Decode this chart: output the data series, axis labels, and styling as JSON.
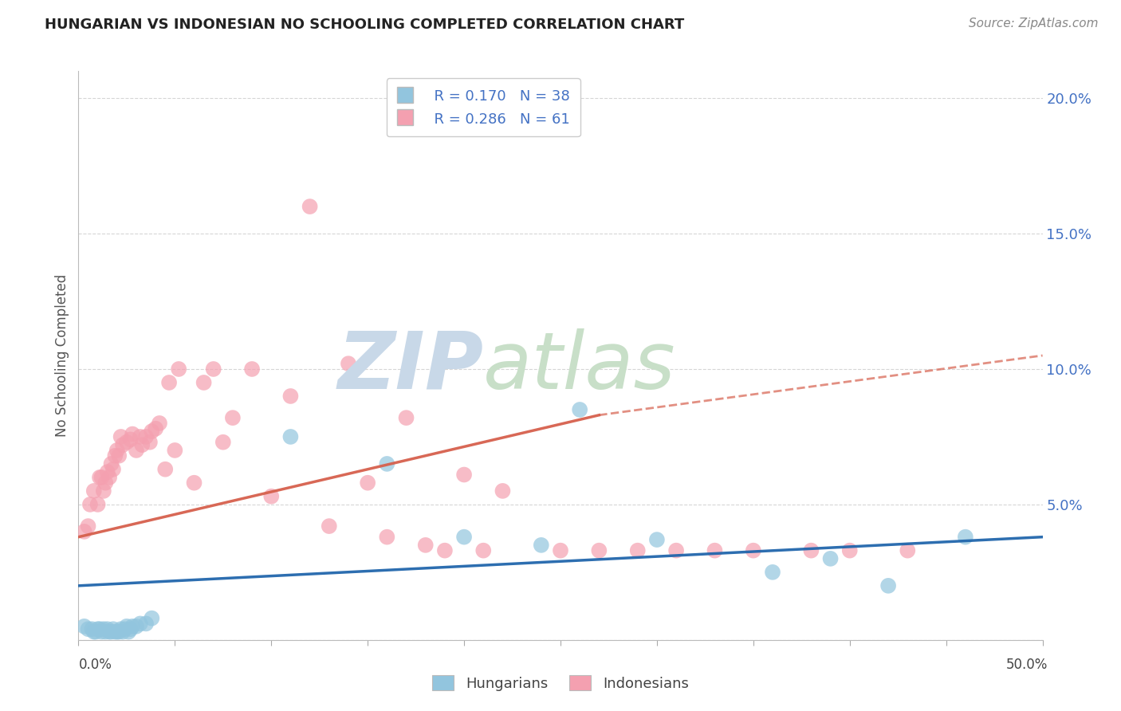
{
  "title": "HUNGARIAN VS INDONESIAN NO SCHOOLING COMPLETED CORRELATION CHART",
  "source": "Source: ZipAtlas.com",
  "ylabel": "No Schooling Completed",
  "xlim": [
    0.0,
    0.5
  ],
  "ylim": [
    0.0,
    0.21
  ],
  "yticks": [
    0.0,
    0.05,
    0.1,
    0.15,
    0.2
  ],
  "ytick_labels": [
    "",
    "5.0%",
    "10.0%",
    "15.0%",
    "20.0%"
  ],
  "legend_r_hungarian": "R = 0.170",
  "legend_n_hungarian": "N = 38",
  "legend_r_indonesian": "R = 0.286",
  "legend_n_indonesian": "N = 61",
  "hungarian_color": "#92c5de",
  "indonesian_color": "#f4a0b0",
  "hun_line_color": "#2166ac",
  "ind_line_color": "#d6604d",
  "watermark_zip_color": "#c8d8e8",
  "watermark_atlas_color": "#c8dfc8",
  "hun_x": [
    0.003,
    0.005,
    0.007,
    0.008,
    0.009,
    0.01,
    0.011,
    0.012,
    0.013,
    0.014,
    0.015,
    0.016,
    0.017,
    0.018,
    0.019,
    0.02,
    0.021,
    0.022,
    0.023,
    0.024,
    0.025,
    0.026,
    0.027,
    0.028,
    0.03,
    0.032,
    0.035,
    0.038,
    0.11,
    0.16,
    0.2,
    0.24,
    0.26,
    0.3,
    0.36,
    0.39,
    0.42,
    0.46
  ],
  "hun_y": [
    0.005,
    0.004,
    0.004,
    0.003,
    0.003,
    0.004,
    0.004,
    0.003,
    0.004,
    0.003,
    0.004,
    0.003,
    0.003,
    0.004,
    0.003,
    0.003,
    0.003,
    0.004,
    0.003,
    0.004,
    0.005,
    0.003,
    0.004,
    0.005,
    0.005,
    0.006,
    0.006,
    0.008,
    0.075,
    0.065,
    0.038,
    0.035,
    0.085,
    0.037,
    0.025,
    0.03,
    0.02,
    0.038
  ],
  "ind_x": [
    0.003,
    0.005,
    0.006,
    0.008,
    0.01,
    0.011,
    0.012,
    0.013,
    0.014,
    0.015,
    0.016,
    0.017,
    0.018,
    0.019,
    0.02,
    0.021,
    0.022,
    0.023,
    0.025,
    0.027,
    0.028,
    0.03,
    0.032,
    0.033,
    0.035,
    0.037,
    0.038,
    0.04,
    0.042,
    0.045,
    0.047,
    0.05,
    0.052,
    0.06,
    0.065,
    0.07,
    0.075,
    0.08,
    0.09,
    0.1,
    0.11,
    0.12,
    0.13,
    0.14,
    0.15,
    0.16,
    0.17,
    0.18,
    0.19,
    0.2,
    0.21,
    0.22,
    0.25,
    0.27,
    0.29,
    0.31,
    0.33,
    0.35,
    0.38,
    0.4,
    0.43
  ],
  "ind_y": [
    0.04,
    0.042,
    0.05,
    0.055,
    0.05,
    0.06,
    0.06,
    0.055,
    0.058,
    0.062,
    0.06,
    0.065,
    0.063,
    0.068,
    0.07,
    0.068,
    0.075,
    0.072,
    0.073,
    0.074,
    0.076,
    0.07,
    0.075,
    0.072,
    0.075,
    0.073,
    0.077,
    0.078,
    0.08,
    0.063,
    0.095,
    0.07,
    0.1,
    0.058,
    0.095,
    0.1,
    0.073,
    0.082,
    0.1,
    0.053,
    0.09,
    0.16,
    0.042,
    0.102,
    0.058,
    0.038,
    0.082,
    0.035,
    0.033,
    0.061,
    0.033,
    0.055,
    0.033,
    0.033,
    0.033,
    0.033,
    0.033,
    0.033,
    0.033,
    0.033,
    0.033
  ],
  "hun_line_x0": 0.0,
  "hun_line_x1": 0.5,
  "hun_line_y0": 0.02,
  "hun_line_y1": 0.038,
  "ind_line_solid_x0": 0.0,
  "ind_line_solid_x1": 0.27,
  "ind_line_y0": 0.038,
  "ind_line_y1": 0.083,
  "ind_line_dash_x0": 0.27,
  "ind_line_dash_x1": 0.5,
  "ind_line_dash_y0": 0.083,
  "ind_line_dash_y1": 0.105
}
